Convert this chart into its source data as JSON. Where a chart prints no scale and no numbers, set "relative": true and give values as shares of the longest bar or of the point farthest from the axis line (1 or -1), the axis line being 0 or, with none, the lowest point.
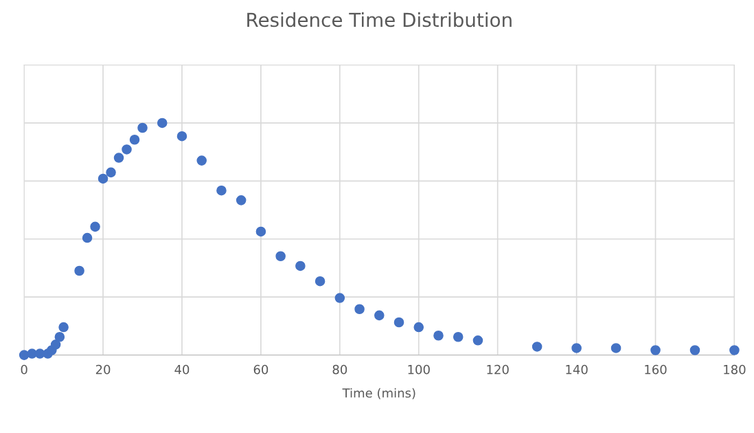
{
  "chart_data": {
    "type": "scatter",
    "title": "Residence Time Distribution",
    "xlabel": "Time (mins)",
    "relative": true,
    "x": [
      0,
      2,
      4,
      6,
      7,
      8,
      9,
      10,
      14,
      16,
      18,
      20,
      22,
      24,
      26,
      28,
      30,
      35,
      40,
      45,
      50,
      55,
      60,
      65,
      70,
      75,
      80,
      85,
      90,
      95,
      100,
      105,
      110,
      115,
      130,
      140,
      150,
      160,
      170,
      180
    ],
    "series": [
      {
        "color": "#4472c4",
        "values": [
          0,
          0.006,
          0.006,
          0.006,
          0.021,
          0.045,
          0.078,
          0.12,
          0.363,
          0.505,
          0.553,
          0.76,
          0.787,
          0.85,
          0.886,
          0.928,
          0.979,
          1,
          0.943,
          0.838,
          0.709,
          0.667,
          0.532,
          0.426,
          0.384,
          0.318,
          0.246,
          0.198,
          0.171,
          0.141,
          0.12,
          0.084,
          0.078,
          0.063,
          0.036,
          0.03,
          0.03,
          0.021,
          0.021,
          0.021
        ]
      }
    ],
    "xlim": [
      0,
      180
    ],
    "xticks": [
      0,
      20,
      40,
      60,
      80,
      100,
      120,
      140,
      160,
      180
    ],
    "grid": true,
    "marker": "circle"
  }
}
